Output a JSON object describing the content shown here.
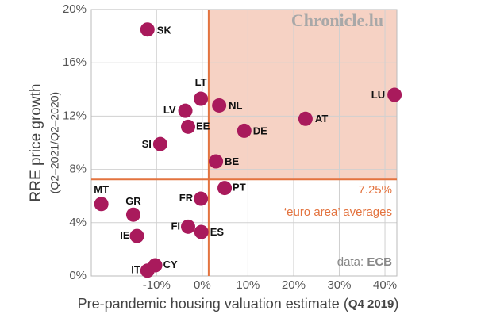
{
  "chart_data": {
    "type": "scatter",
    "y_label": "RRE price growth",
    "y_sublabel": "(Q2–2021/Q2–2020)",
    "x_label": [
      "Pre-pandemic housing valuation estimate (",
      "Q4 2019",
      ")"
    ],
    "watermark": "Chronicle.lu",
    "source": [
      "data: ",
      "ECB"
    ],
    "reference": {
      "x": 1.4,
      "y": {
        "value": 7.25,
        "label": "7.25%"
      },
      "label": "‘euro area’ averages",
      "color": "#e3733f",
      "shade": "#f6d2c4"
    },
    "color": "#a91a5c",
    "grid": true,
    "xlim": [
      -24.3,
      42.6
    ],
    "ylim": [
      0,
      20
    ],
    "xticks": [
      {
        "value": -10,
        "label": "-10%"
      },
      {
        "value": 0,
        "label": "0%"
      },
      {
        "value": 10,
        "label": "10%"
      },
      {
        "value": 20,
        "label": "20%"
      },
      {
        "value": 30,
        "label": "30%"
      },
      {
        "value": 40,
        "label": "40%"
      }
    ],
    "yticks": [
      {
        "value": 0,
        "label": "0%"
      },
      {
        "value": 4,
        "label": "4%"
      },
      {
        "value": 8,
        "label": "8%"
      },
      {
        "value": 12,
        "label": "12%"
      },
      {
        "value": 16,
        "label": "16%"
      },
      {
        "value": 20,
        "label": "20%"
      }
    ],
    "labels": [
      "SK",
      "LT",
      "NL",
      "LU",
      "LV",
      "AT",
      "EE",
      "DE",
      "SI",
      "BE",
      "PT",
      "FR",
      "MT",
      "GR",
      "FI",
      "ES",
      "IE",
      "CY",
      "IT"
    ],
    "x": [
      -12.0,
      -0.3,
      3.7,
      42.1,
      -3.7,
      22.6,
      -3.1,
      9.2,
      -9.2,
      3.0,
      4.9,
      -0.3,
      -22.1,
      -15.1,
      -3.1,
      -0.2,
      -14.3,
      -10.3,
      -12.0
    ],
    "values": [
      18.5,
      13.3,
      12.8,
      13.6,
      12.4,
      11.8,
      11.2,
      10.9,
      9.9,
      8.6,
      6.6,
      5.8,
      5.4,
      4.6,
      3.7,
      3.3,
      3.0,
      0.8,
      0.4
    ]
  }
}
